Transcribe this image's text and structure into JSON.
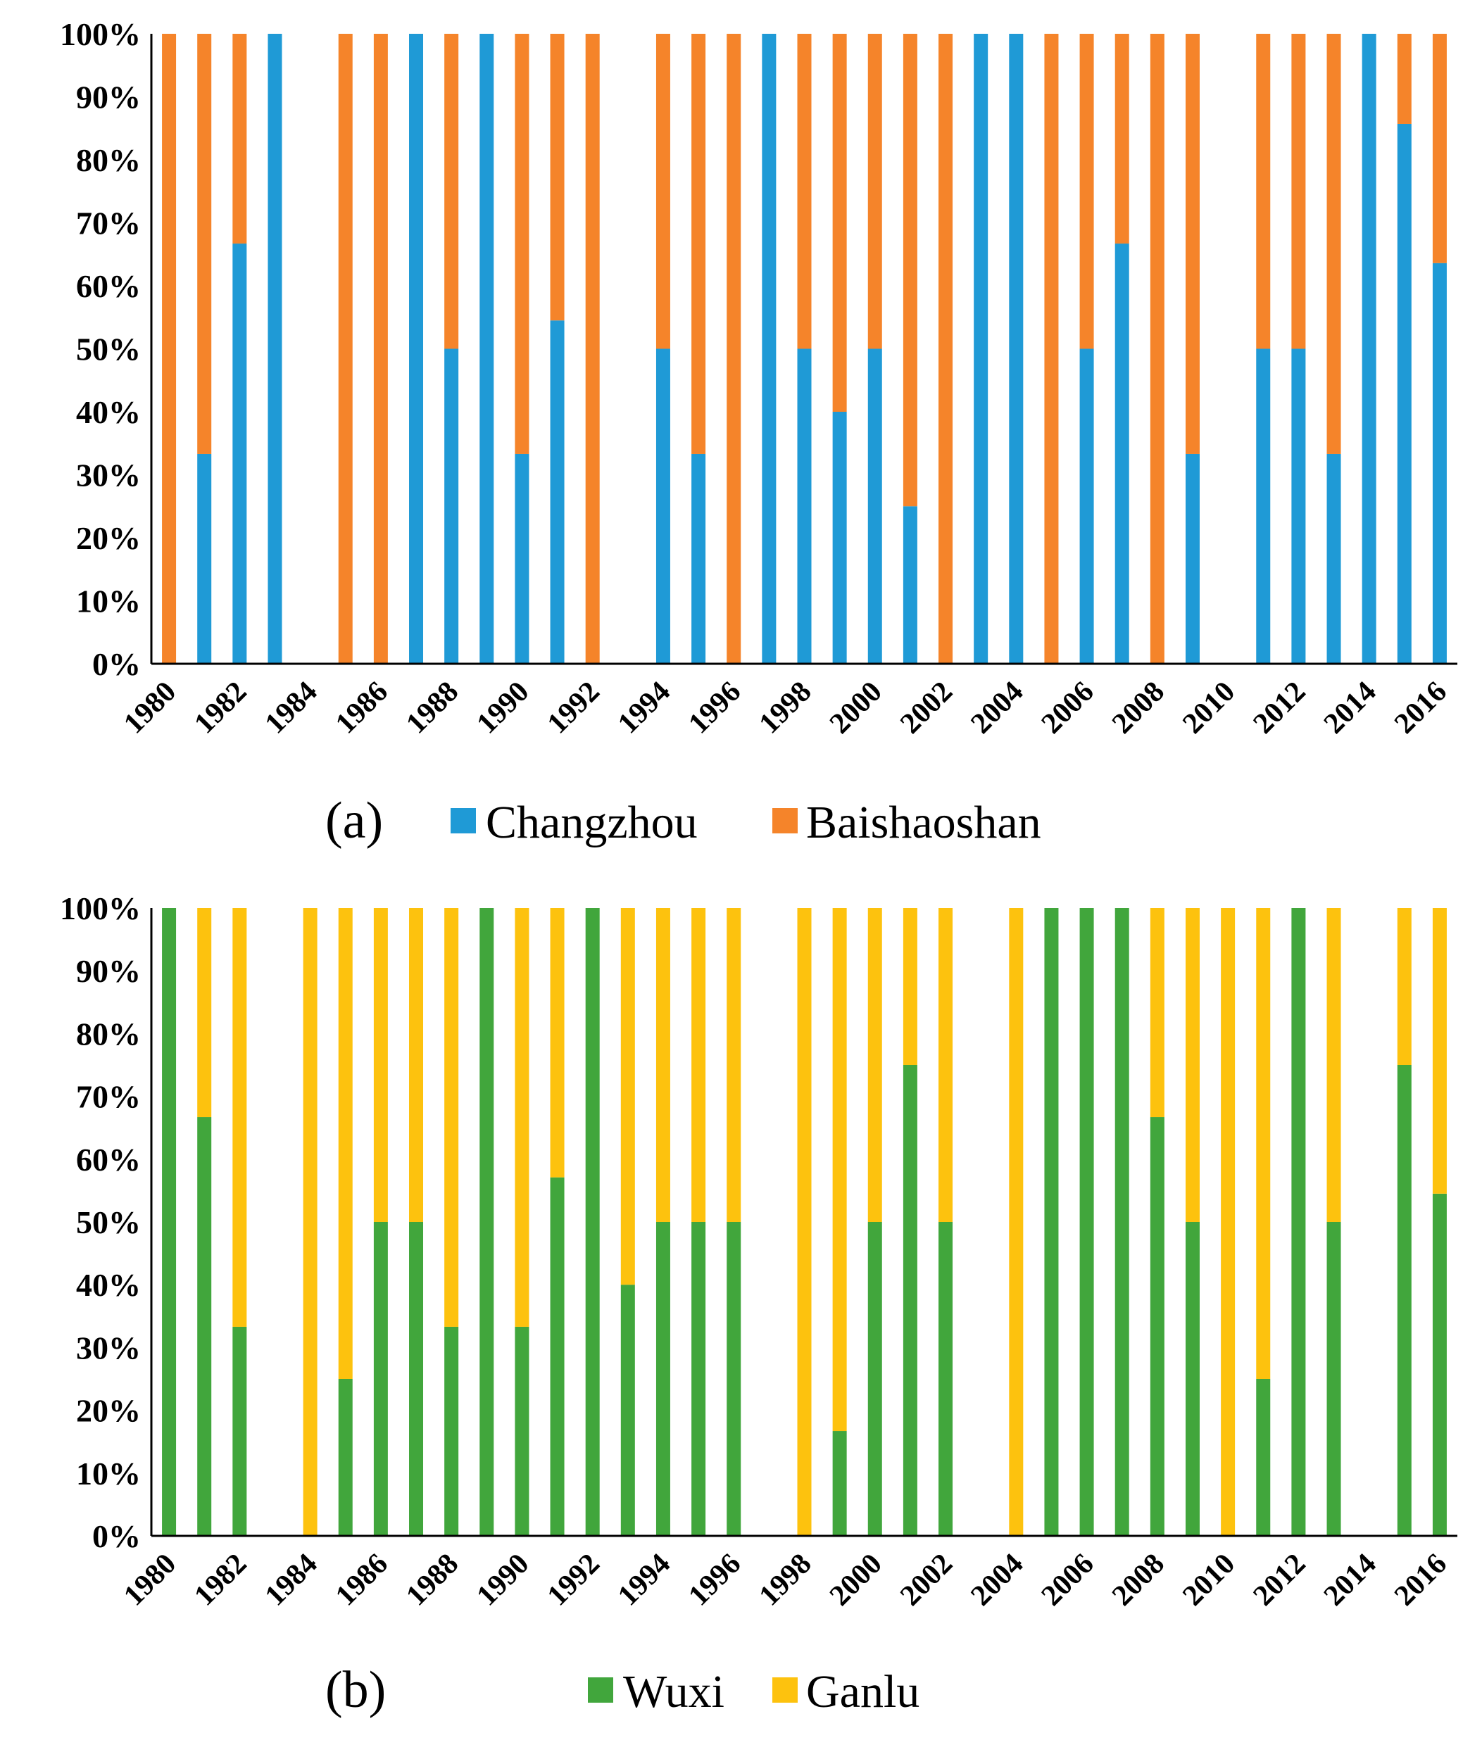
{
  "chart_data": [
    {
      "type": "bar",
      "stacked": true,
      "normalized": true,
      "panel_label": "(a)",
      "ylim": [
        0,
        100
      ],
      "y_ticks": [
        "0%",
        "10%",
        "20%",
        "30%",
        "40%",
        "50%",
        "60%",
        "70%",
        "80%",
        "90%",
        "100%"
      ],
      "x_tick_labels": [
        "1980",
        "1982",
        "1984",
        "1986",
        "1988",
        "1990",
        "1992",
        "1994",
        "1996",
        "1998",
        "2000",
        "2002",
        "2004",
        "2006",
        "2008",
        "2010",
        "2012",
        "2014",
        "2016"
      ],
      "categories": [
        "1980",
        "1981",
        "1982",
        "1983",
        "1984",
        "1985",
        "1986",
        "1987",
        "1988",
        "1989",
        "1990",
        "1991",
        "1992",
        "1993",
        "1994",
        "1995",
        "1996",
        "1997",
        "1998",
        "1999",
        "2000",
        "2001",
        "2002",
        "2003",
        "2004",
        "2005",
        "2006",
        "2007",
        "2008",
        "2009",
        "2010",
        "2011",
        "2012",
        "2013",
        "2014",
        "2015",
        "2016"
      ],
      "legend_position": "bottom",
      "series": [
        {
          "name": "Changzhou",
          "color": "#1f9ad6",
          "values": [
            0,
            33.3,
            66.7,
            100,
            null,
            0,
            0,
            100,
            50,
            100,
            33.3,
            54.5,
            0,
            null,
            50,
            33.3,
            0,
            100,
            50,
            40,
            50,
            25,
            0,
            100,
            100,
            0,
            50,
            66.7,
            0,
            33.3,
            null,
            50,
            50,
            33.3,
            100,
            85.7,
            63.6
          ]
        },
        {
          "name": "Baishaoshan",
          "color": "#f5842a",
          "values": [
            100,
            66.7,
            33.3,
            0,
            null,
            100,
            100,
            0,
            50,
            0,
            66.7,
            45.5,
            100,
            null,
            50,
            66.7,
            100,
            0,
            50,
            60,
            50,
            75,
            100,
            0,
            0,
            100,
            50,
            33.3,
            100,
            66.7,
            null,
            50,
            50,
            66.7,
            0,
            14.3,
            36.4
          ]
        }
      ]
    },
    {
      "type": "bar",
      "stacked": true,
      "normalized": true,
      "panel_label": "(b)",
      "ylim": [
        0,
        100
      ],
      "y_ticks": [
        "0%",
        "10%",
        "20%",
        "30%",
        "40%",
        "50%",
        "60%",
        "70%",
        "80%",
        "90%",
        "100%"
      ],
      "x_tick_labels": [
        "1980",
        "1982",
        "1984",
        "1986",
        "1988",
        "1990",
        "1992",
        "1994",
        "1996",
        "1998",
        "2000",
        "2002",
        "2004",
        "2006",
        "2008",
        "2010",
        "2012",
        "2014",
        "2016"
      ],
      "categories": [
        "1980",
        "1981",
        "1982",
        "1983",
        "1984",
        "1985",
        "1986",
        "1987",
        "1988",
        "1989",
        "1990",
        "1991",
        "1992",
        "1993",
        "1994",
        "1995",
        "1996",
        "1997",
        "1998",
        "1999",
        "2000",
        "2001",
        "2002",
        "2003",
        "2004",
        "2005",
        "2006",
        "2007",
        "2008",
        "2009",
        "2010",
        "2011",
        "2012",
        "2013",
        "2014",
        "2015",
        "2016"
      ],
      "legend_position": "bottom",
      "series": [
        {
          "name": "Wuxi",
          "color": "#41a63c",
          "values": [
            100,
            66.7,
            33.3,
            null,
            0,
            25,
            50,
            50,
            33.3,
            100,
            33.3,
            57.1,
            100,
            40,
            50,
            50,
            50,
            null,
            0,
            16.7,
            50,
            75,
            50,
            null,
            0,
            100,
            100,
            100,
            66.7,
            50,
            0,
            25,
            100,
            50,
            null,
            75,
            54.5
          ]
        },
        {
          "name": "Ganlu",
          "color": "#fdc20e",
          "values": [
            0,
            33.3,
            66.7,
            null,
            100,
            75,
            50,
            50,
            66.7,
            0,
            66.7,
            42.9,
            0,
            60,
            50,
            50,
            50,
            null,
            100,
            83.3,
            50,
            25,
            50,
            null,
            100,
            0,
            0,
            0,
            33.3,
            50,
            100,
            75,
            0,
            50,
            null,
            25,
            45.5
          ]
        }
      ]
    }
  ]
}
